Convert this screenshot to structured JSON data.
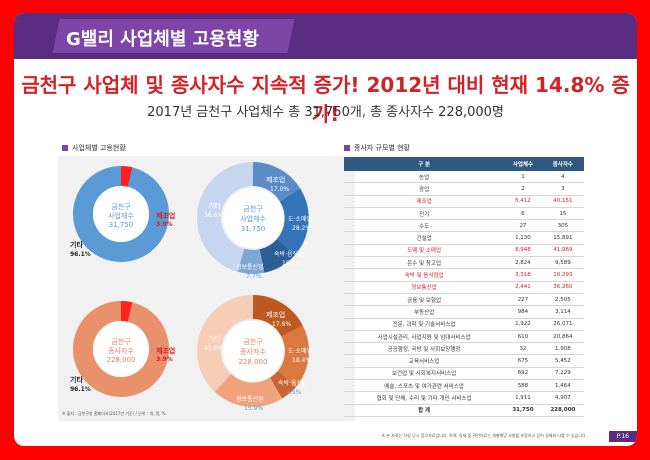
{
  "header": {
    "title": "G밸리 사업체별 고용현황"
  },
  "headline": "금천구 사업체 및 종사자수 지속적 증가! 2012년 대비 현재 14.8% 증가!",
  "subheadline": "2017년 금천구 사업체수 총 31,750개, 총 종사자수 228,000명",
  "left_section_label": "사업체별 고용현황",
  "right_section_label": "종사자 규모별 현황",
  "footnote": "※ 출처 : 금천구청 홈페이지(2017년 기준) / 단위 : 개, 명, %",
  "bottom_note": "※ 본 자료는 작성 당시 참고자료입니다. 하여, 실제 및 관련자료는 개별해당 사항을 포함하고 있어 실제와 다를 수 있습니다.",
  "page_number": "P.16",
  "donuts": {
    "biz_small": {
      "center1": "금천구",
      "center2": "사업체수",
      "center3": "31,750",
      "label_mfg": "제조업",
      "mfg_pct": "3.9%",
      "label_other": "기타",
      "other_pct": "96.1%"
    },
    "biz_big": {
      "center1": "금천구",
      "center2": "사업체수",
      "center3": "31,750",
      "label_mfg": "제조업",
      "mfg_pct": "17.0%",
      "label_wholesale": "도·소매업",
      "wholesale_pct": "28.2%",
      "label_food": "숙박·음식업",
      "food_pct": "10.5%",
      "label_comm": "정보통신업",
      "comm_pct": "7.7%",
      "label_other": "기타",
      "other_pct": "36.6%"
    },
    "emp_small": {
      "center1": "금천구",
      "center2": "종사자수",
      "center3": "228,000",
      "label_mfg": "제조업",
      "mfg_pct": "3.9%",
      "label_other": "기타",
      "other_pct": "96.1%"
    },
    "emp_big": {
      "center1": "금천구",
      "center2": "종사자수",
      "center3": "228,000",
      "label_mfg": "제조업",
      "mfg_pct": "17.6%",
      "label_wholesale": "도·소매업",
      "wholesale_pct": "18.4%",
      "label_food": "숙박·음식업",
      "food_pct": "4.5%",
      "label_comm": "정보통신업",
      "comm_pct": "15.9%",
      "label_other": "기타",
      "other_pct": "43.6%"
    }
  },
  "table": {
    "headers": [
      "구 분",
      "사업체수",
      "종사자수"
    ],
    "rows": [
      [
        "농업",
        "1",
        "4"
      ],
      [
        "광업",
        "2",
        "3"
      ],
      [
        "제조업",
        "5,412",
        "40,151"
      ],
      [
        "전기",
        "6",
        "15"
      ],
      [
        "수도",
        "27",
        "305"
      ],
      [
        "건설업",
        "1,130",
        "15,891"
      ],
      [
        "도매 및 소매업",
        "8,948",
        "41,969"
      ],
      [
        "운수 및 창고업",
        "2,824",
        "9,589"
      ],
      [
        "숙박 및 음식점업",
        "3,318",
        "10,293"
      ],
      [
        "정보통신업",
        "2,441",
        "36,260"
      ],
      [
        "금융 및 보험업",
        "227",
        "2,505"
      ],
      [
        "부동산업",
        "984",
        "3,114"
      ],
      [
        "전문, 과학 및 기술서비스업",
        "1,922",
        "26,071"
      ],
      [
        "사업시설관리, 사업지원 및 임대서비스업",
        "610",
        "20,864"
      ],
      [
        "공공행정, 국방 및 사회보장행정",
        "32",
        "1,908"
      ],
      [
        "교육서비스업",
        "675",
        "5,452"
      ],
      [
        "보건업 및 사회복지서비스업",
        "692",
        "7,229"
      ],
      [
        "예술, 스포츠 및 여가관련 서비스업",
        "588",
        "1,464"
      ],
      [
        "협회 및 단체, 수리 및 기타 개인 서비스업",
        "1,911",
        "4,907"
      ],
      [
        "합 계",
        "31,750",
        "228,000"
      ]
    ]
  },
  "colors": {
    "purple": "#5a2c82",
    "red": "#d22127",
    "blue": "#5b9bd5",
    "orange": "#e0855e"
  }
}
